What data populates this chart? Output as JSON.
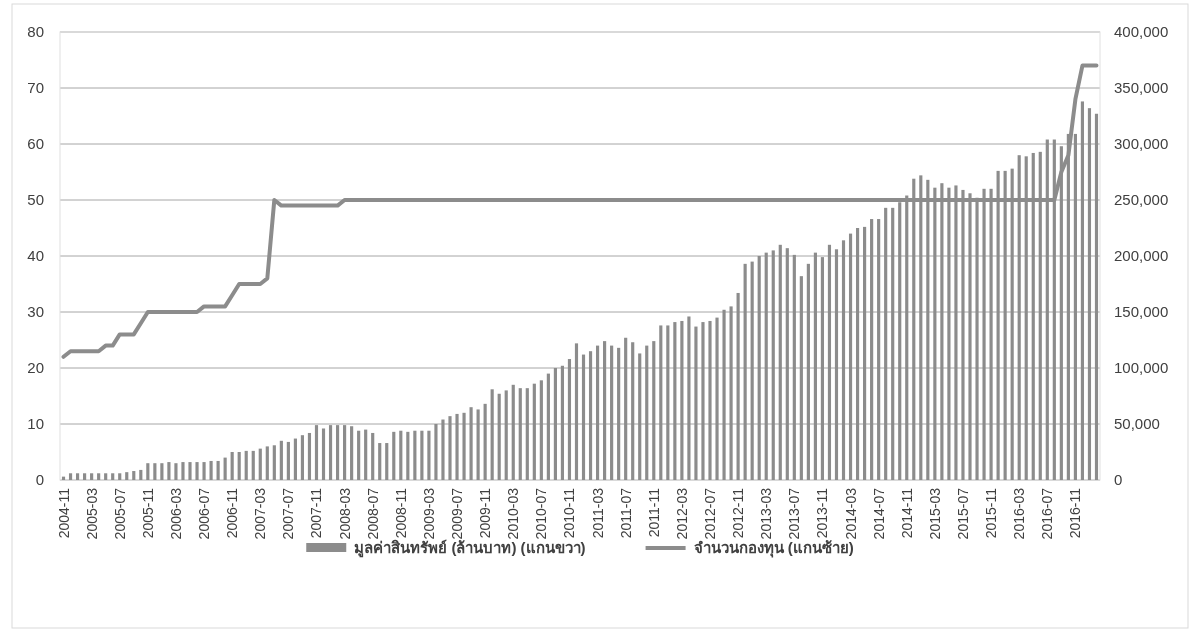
{
  "chart_data": {
    "type": "bar",
    "categories": [
      "2004-11",
      null,
      null,
      null,
      "2005-03",
      null,
      null,
      null,
      "2005-07",
      null,
      null,
      null,
      "2005-11",
      null,
      null,
      null,
      "2006-03",
      null,
      null,
      null,
      "2006-07",
      null,
      null,
      null,
      "2006-11",
      null,
      null,
      null,
      "2007-03",
      null,
      null,
      null,
      "2007-07",
      null,
      null,
      null,
      "2007-11",
      null,
      null,
      null,
      "2008-03",
      null,
      null,
      null,
      "2008-07",
      null,
      null,
      null,
      "2008-11",
      null,
      null,
      null,
      "2009-03",
      null,
      null,
      null,
      "2009-07",
      null,
      null,
      null,
      "2009-11",
      null,
      null,
      null,
      "2010-03",
      null,
      null,
      null,
      "2010-07",
      null,
      null,
      null,
      "2010-11",
      null,
      null,
      null,
      "2011-03",
      null,
      null,
      null,
      "2011-07",
      null,
      null,
      null,
      "2011-11",
      null,
      null,
      null,
      "2012-03",
      null,
      null,
      null,
      "2012-07",
      null,
      null,
      null,
      "2012-11",
      null,
      null,
      null,
      "2013-03",
      null,
      null,
      null,
      "2013-07",
      null,
      null,
      null,
      "2013-11",
      null,
      null,
      null,
      "2014-03",
      null,
      null,
      null,
      "2014-07",
      null,
      null,
      null,
      "2014-11",
      null,
      null,
      null,
      "2015-03",
      null,
      null,
      null,
      "2015-07",
      null,
      null,
      null,
      "2015-11",
      null,
      null,
      null,
      "2016-03",
      null,
      null,
      null,
      "2016-07",
      null,
      null,
      null,
      "2016-11",
      null,
      null,
      null
    ],
    "series": [
      {
        "name": "มูลค่าสินทรัพย์ (ล้านบาท) (แกนขวา)",
        "axis": "y2",
        "color": "#8c8c8c",
        "values": [
          3000,
          6000,
          6000,
          6000,
          6000,
          6000,
          6000,
          6000,
          6000,
          7000,
          8000,
          9000,
          15000,
          15000,
          15000,
          16000,
          15000,
          16000,
          16000,
          16000,
          16000,
          17000,
          17000,
          20000,
          25000,
          25000,
          26000,
          26000,
          28000,
          30000,
          31000,
          35000,
          34000,
          37000,
          40000,
          42000,
          49000,
          46000,
          49000,
          49000,
          49000,
          48000,
          44000,
          45000,
          42000,
          33000,
          33000,
          43000,
          44000,
          43000,
          44000,
          44000,
          44000,
          50000,
          54000,
          57000,
          59000,
          60000,
          65000,
          63000,
          68000,
          81000,
          77000,
          80000,
          85000,
          82000,
          82000,
          86000,
          89000,
          95000,
          100000,
          102000,
          108000,
          122000,
          112000,
          115000,
          120000,
          124000,
          120000,
          118000,
          127000,
          123000,
          113000,
          120000,
          124000,
          138000,
          138000,
          141000,
          142000,
          146000,
          137000,
          141000,
          142000,
          145000,
          152000,
          155000,
          167000,
          193000,
          195000,
          200000,
          203000,
          205000,
          210000,
          207000,
          201000,
          182000,
          193000,
          203000,
          199000,
          210000,
          206000,
          214000,
          220000,
          225000,
          226000,
          233000,
          233000,
          243000,
          243000,
          248000,
          254000,
          269000,
          272000,
          268000,
          261000,
          265000,
          261000,
          263000,
          259000,
          256000,
          252000,
          260000,
          260000,
          276000,
          276000,
          278000,
          290000,
          289000,
          292000,
          293000,
          304000,
          304000,
          298000,
          309000,
          309000,
          338000,
          332000,
          327000
        ]
      },
      {
        "name": "จำนวนกองทุน (แกนซ้าย)",
        "type": "line",
        "color": "#8c8c8c",
        "values": [
          22,
          23,
          23,
          23,
          23,
          23,
          24,
          24,
          26,
          26,
          26,
          28,
          30,
          30,
          30,
          30,
          30,
          30,
          30,
          30,
          31,
          31,
          31,
          31,
          33,
          35,
          35,
          35,
          35,
          36,
          50,
          49,
          49,
          49,
          49,
          49,
          49,
          49,
          49,
          49,
          50,
          50,
          50,
          50,
          50,
          50,
          50,
          50,
          50,
          50,
          50,
          50,
          50,
          50,
          50,
          50,
          50,
          50,
          50,
          50,
          50,
          50,
          50,
          50,
          50,
          50,
          50,
          50,
          50,
          50,
          50,
          50,
          50,
          50,
          50,
          50,
          50,
          50,
          50,
          50,
          50,
          50,
          50,
          50,
          50,
          50,
          50,
          50,
          50,
          50,
          50,
          50,
          50,
          50,
          50,
          50,
          50,
          50,
          50,
          50,
          50,
          50,
          50,
          50,
          50,
          50,
          50,
          50,
          50,
          50,
          50,
          50,
          50,
          50,
          50,
          50,
          50,
          50,
          50,
          50,
          50,
          50,
          50,
          50,
          50,
          50,
          50,
          50,
          50,
          50,
          50,
          50,
          50,
          50,
          50,
          50,
          50,
          50,
          50,
          50,
          50,
          50,
          55,
          58,
          68,
          74,
          74,
          74
        ]
      }
    ],
    "ylim": [
      0,
      80
    ],
    "yticks": [
      0,
      10,
      20,
      30,
      40,
      50,
      60,
      70,
      80
    ],
    "y2lim": [
      0,
      400000
    ],
    "y2ticks": [
      {
        "value": 0,
        "label": "0"
      },
      {
        "value": 50000,
        "label": "50,000"
      },
      {
        "value": 100000,
        "label": "100,000"
      },
      {
        "value": 150000,
        "label": "150,000"
      },
      {
        "value": 200000,
        "label": "200,000"
      },
      {
        "value": 250000,
        "label": "250,000"
      },
      {
        "value": 300000,
        "label": "300,000"
      },
      {
        "value": 350000,
        "label": "350,000"
      },
      {
        "value": 400000,
        "label": "400,000"
      }
    ],
    "grid": "y",
    "legend": "bottom"
  }
}
